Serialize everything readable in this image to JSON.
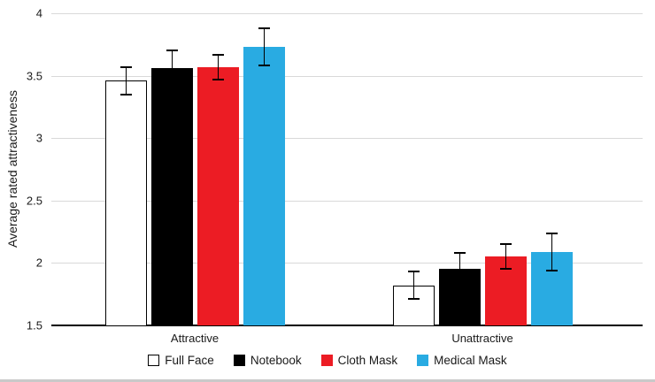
{
  "chart_data": {
    "type": "bar",
    "title": "",
    "ylabel": "Average rated attractiveness",
    "xlabel": "",
    "ylim": [
      1.5,
      4
    ],
    "ytick_values": [
      1.5,
      2,
      2.5,
      3,
      3.5,
      4
    ],
    "ytick_labels": [
      "1.5",
      "2",
      "2.5",
      "3",
      "3.5",
      "4"
    ],
    "categories": [
      "Attractive",
      "Unattractive"
    ],
    "series": [
      {
        "name": "Full Face",
        "fill": "#ffffff",
        "border": "#000000",
        "values": [
          3.46,
          1.82
        ],
        "errors": [
          0.11,
          0.11
        ]
      },
      {
        "name": "Notebook",
        "fill": "#000000",
        "border": "#000000",
        "values": [
          3.56,
          1.95
        ],
        "errors": [
          0.14,
          0.13
        ]
      },
      {
        "name": "Cloth Mask",
        "fill": "#ec1c24",
        "border": "#ec1c24",
        "values": [
          3.57,
          2.05
        ],
        "errors": [
          0.1,
          0.1
        ]
      },
      {
        "name": "Medical Mask",
        "fill": "#29abe2",
        "border": "#29abe2",
        "values": [
          3.73,
          2.09
        ],
        "errors": [
          0.15,
          0.15
        ]
      }
    ],
    "grid": true,
    "legend_position": "bottom",
    "error_bar_color": "#000000"
  }
}
